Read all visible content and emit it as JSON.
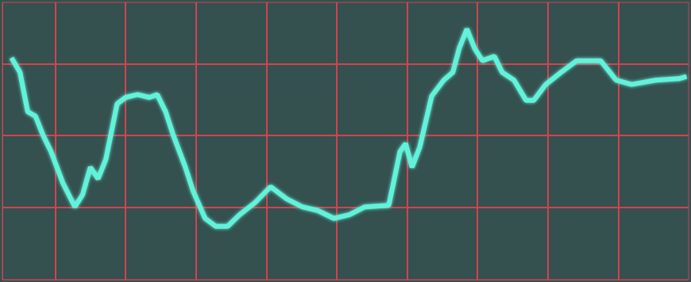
{
  "chart_data": {
    "type": "line",
    "x": [
      -4.62,
      -4.5,
      -4.39,
      -4.28,
      -4.17,
      -4.06,
      -3.89,
      -3.72,
      -3.61,
      -3.5,
      -3.39,
      -3.28,
      -3.12,
      -3.0,
      -2.83,
      -2.66,
      -2.55,
      -2.43,
      -2.32,
      -2.15,
      -2.04,
      -1.87,
      -1.72,
      -1.55,
      -1.38,
      -1.16,
      -0.94,
      -0.71,
      -0.49,
      -0.27,
      -0.04,
      0.18,
      0.4,
      0.74,
      0.9,
      0.98,
      1.07,
      1.18,
      1.35,
      1.52,
      1.65,
      1.74,
      1.85,
      1.96,
      2.07,
      2.24,
      2.35,
      2.52,
      2.69,
      2.8,
      2.97,
      3.19,
      3.41,
      3.75,
      3.97,
      4.19,
      4.53,
      4.86,
      4.97
    ],
    "values": [
      1.08,
      0.88,
      0.33,
      0.27,
      0.0,
      -0.22,
      -0.66,
      -0.99,
      -0.82,
      -0.44,
      -0.6,
      -0.33,
      0.44,
      0.53,
      0.57,
      0.53,
      0.57,
      0.33,
      0.0,
      -0.44,
      -0.77,
      -1.15,
      -1.26,
      -1.26,
      -1.1,
      -0.93,
      -0.71,
      -0.88,
      -0.99,
      -1.04,
      -1.15,
      -1.1,
      -0.99,
      -0.97,
      -0.22,
      -0.11,
      -0.44,
      -0.16,
      0.55,
      0.77,
      0.88,
      1.21,
      1.48,
      1.21,
      1.04,
      1.1,
      0.88,
      0.77,
      0.49,
      0.49,
      0.71,
      0.88,
      1.04,
      1.04,
      0.77,
      0.71,
      0.77,
      0.79,
      0.82
    ],
    "color": "#62f2da",
    "marker": "none",
    "line_style": "solid",
    "xlim": [
      -4.75,
      5.0
    ],
    "xticks": [
      -4,
      -3,
      -2,
      -1,
      0,
      1,
      2,
      3,
      4
    ],
    "ylim": [
      -2.0,
      1.85
    ],
    "yticks": [
      -1,
      0,
      1
    ],
    "grid": true,
    "tick_labels": false
  }
}
